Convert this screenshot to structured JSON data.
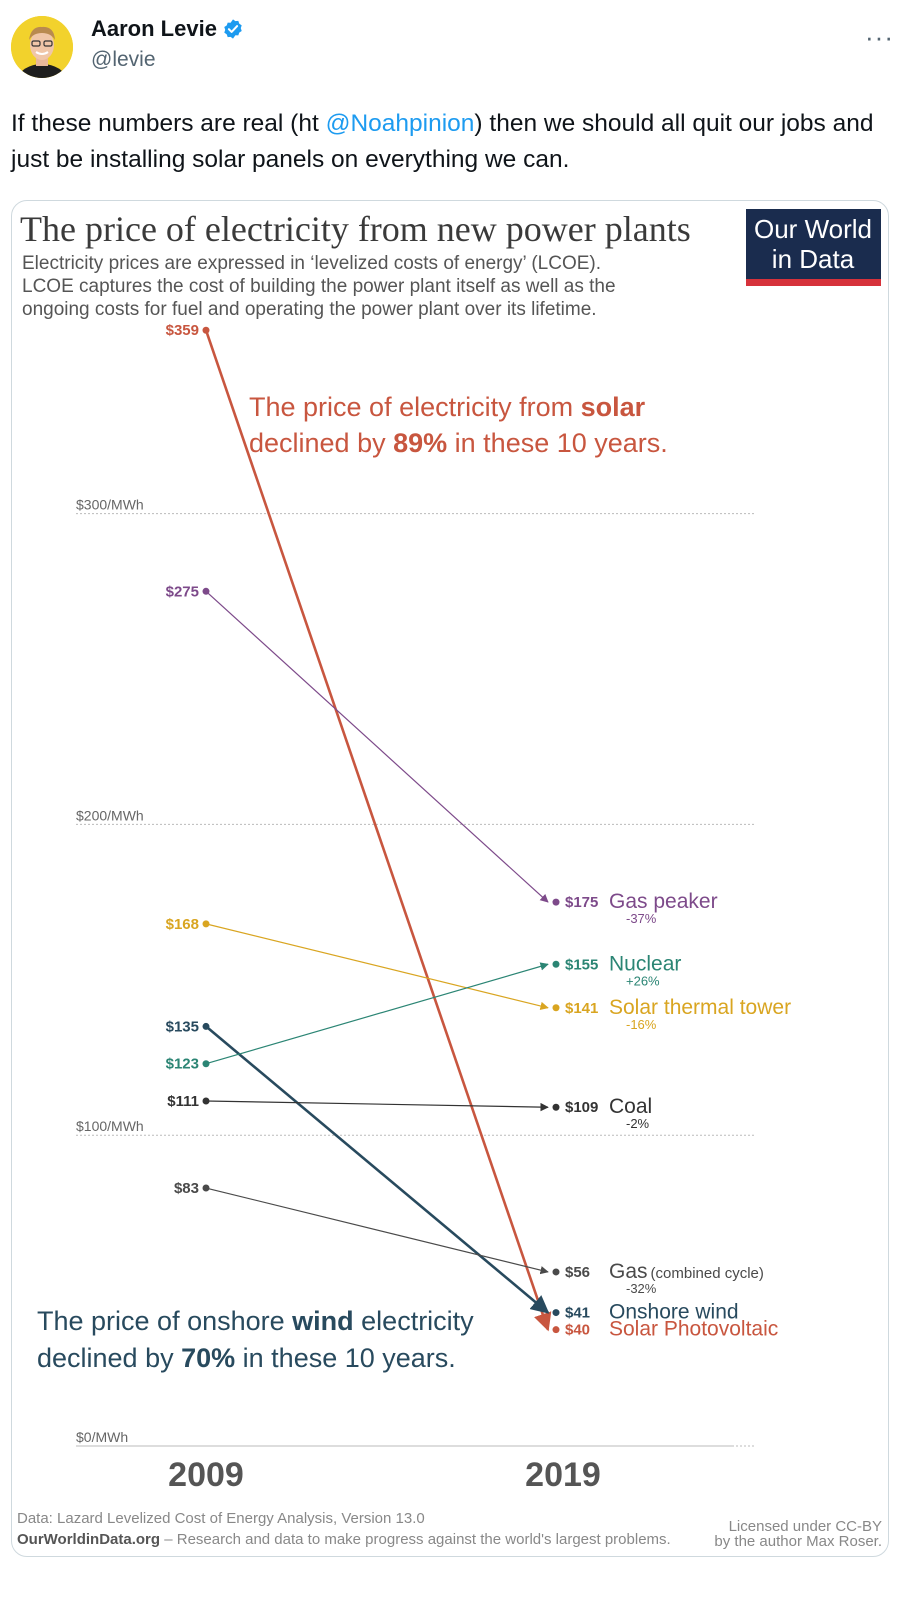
{
  "tweet": {
    "author_name": "Aaron Levie",
    "handle": "@levie",
    "more_label": "···",
    "text_before": "If these numbers are real (ht ",
    "mention": "@Noahpinion",
    "text_after": ") then we should all quit our jobs and just be installing solar panels on everything we can."
  },
  "chart_data": {
    "type": "line",
    "title": "The price of electricity from new power plants",
    "subtitle_lines": [
      "Electricity prices are expressed in ‘levelized costs of energy’ (LCOE).",
      "LCOE captures the cost of building the power plant itself as well as the",
      "ongoing costs for fuel and operating the power plant over its lifetime."
    ],
    "logo_lines": [
      "Our World",
      "in Data"
    ],
    "categories": [
      "2009",
      "2019"
    ],
    "ylim": [
      0,
      359
    ],
    "y_ticks": [
      {
        "value": 300,
        "label": "$300/MWh"
      },
      {
        "value": 200,
        "label": "$200/MWh"
      },
      {
        "value": 100,
        "label": "$100/MWh"
      },
      {
        "value": 0,
        "label": "$0/MWh"
      }
    ],
    "series": [
      {
        "name": "Solar Photovoltaic",
        "values": [
          359,
          40
        ],
        "start_label": "$359",
        "end_label": "$40",
        "change": "",
        "color": "#c8563f"
      },
      {
        "name": "Gas peaker",
        "values": [
          275,
          175
        ],
        "start_label": "$275",
        "end_label": "$175",
        "change": "-37%",
        "color": "#7d4a8a"
      },
      {
        "name": "Solar thermal tower",
        "values": [
          168,
          141
        ],
        "start_label": "$168",
        "end_label": "$141",
        "change": "-16%",
        "color": "#d9a521"
      },
      {
        "name": "Onshore wind",
        "values": [
          135,
          41
        ],
        "start_label": "$135",
        "end_label": "$41",
        "change": "",
        "color": "#284a5e"
      },
      {
        "name": "Nuclear",
        "values": [
          123,
          155
        ],
        "start_label": "$123",
        "end_label": "$155",
        "change": "+26%",
        "color": "#2b8574"
      },
      {
        "name": "Coal",
        "values": [
          111,
          109
        ],
        "start_label": "$111",
        "end_label": "$109",
        "change": "-2%",
        "color": "#333333"
      },
      {
        "name": "Gas",
        "name_suffix": "(combined cycle)",
        "values": [
          83,
          56
        ],
        "start_label": "$83",
        "end_label": "$56",
        "change": "-32%",
        "color": "#4a4a4a"
      }
    ],
    "annotations": {
      "solar": {
        "line1_pre": "The price of electricity from ",
        "line1_bold": "solar",
        "line2_pre": "declined by ",
        "line2_bold": "89%",
        "line2_post": " in these 10 years."
      },
      "wind": {
        "line1_pre": "The price of onshore ",
        "line1_bold": "wind",
        "line1_post": " electricity",
        "line2_pre": "declined by ",
        "line2_bold": "70%",
        "line2_post": " in these 10 years."
      }
    },
    "footer": {
      "source": "Data: Lazard Levelized Cost of Energy Analysis, Version 13.0",
      "site": "OurWorldinData.org",
      "tagline": " – Research and data to make progress against the world's largest problems.",
      "license_line1": "Licensed under CC-BY",
      "license_line2": "by the author Max Roser."
    }
  },
  "colors": {
    "link": "#1d9bf0",
    "verified": "#1d9bf0",
    "logo_bg": "#1a2c4e",
    "logo_bar": "#d6323b"
  }
}
